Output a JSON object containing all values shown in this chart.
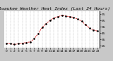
{
  "title": "Milwaukee Weather Heat Index (Last 24 Hours)",
  "hours": [
    0,
    1,
    2,
    3,
    4,
    5,
    6,
    7,
    8,
    9,
    10,
    11,
    12,
    13,
    14,
    15,
    16,
    17,
    18,
    19,
    20,
    21,
    22,
    23
  ],
  "values": [
    29,
    28,
    27,
    28,
    29,
    30,
    31,
    36,
    44,
    54,
    60,
    65,
    69,
    71,
    73,
    72,
    71,
    70,
    67,
    64,
    58,
    53,
    50,
    48
  ],
  "line_color": "#cc0000",
  "marker_color": "#000000",
  "bg_color": "#c8c8c8",
  "plot_bg_color": "#ffffff",
  "grid_color": "#666666",
  "ylim": [
    22,
    80
  ],
  "yticks": [
    25,
    35,
    45,
    55,
    65,
    75
  ],
  "y_labels": [
    "25",
    "35",
    "45",
    "55",
    "65",
    "75"
  ],
  "title_fontsize": 4.5,
  "tick_fontsize": 3.2,
  "figsize": [
    1.6,
    0.87
  ],
  "dpi": 100
}
